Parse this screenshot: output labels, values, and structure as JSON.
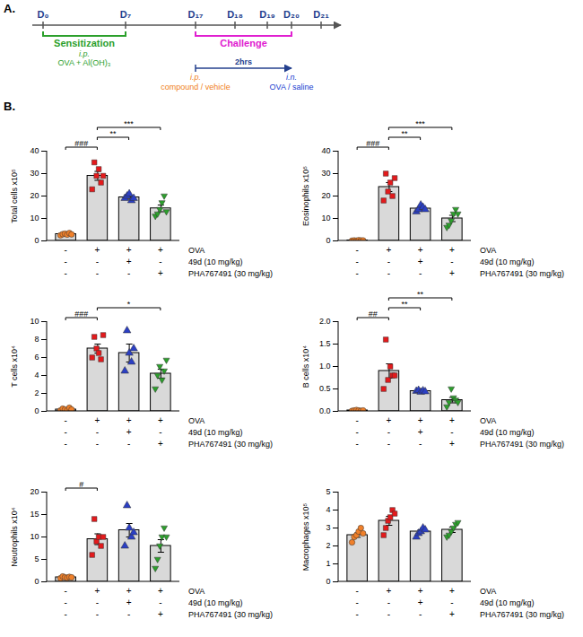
{
  "panel_labels": [
    "A.",
    "B."
  ],
  "timeline": {
    "days": [
      "D₀",
      "D₇",
      "D₁₇",
      "D₁₈",
      "D₁₉",
      "D₂₀",
      "D₂₁"
    ],
    "days_color": "#24408e",
    "phases": [
      {
        "label": "Sensitization",
        "from": "D₀",
        "to": "D₇",
        "color": "#2ca02c",
        "route": "i.p.",
        "treatment": "OVA + Al(OH)₃"
      },
      {
        "label": "Challenge",
        "from": "D₁₇",
        "to": "D₂₀",
        "color": "#e020d0"
      }
    ],
    "pretreatment": {
      "label": "2hrs",
      "from": "D₁₇",
      "to": "D₂₀",
      "color": "#24408e",
      "steps": [
        {
          "route": "i.p.",
          "text": "compound / vehicle",
          "color": "#f07f20"
        },
        {
          "route": "i.n.",
          "text": "OVA / saline",
          "color": "#2040d0"
        }
      ]
    }
  },
  "chart_data": [
    {
      "type": "bar",
      "ylabel": "Total cells x10⁵",
      "categories": [
        null,
        null,
        null,
        null
      ],
      "values": [
        3.0,
        29,
        19.4,
        14.5
      ],
      "errors": [
        0.3,
        2.0,
        0.8,
        1.5
      ],
      "points": [
        [
          2.5,
          3.0,
          3.2,
          2.8,
          3.5,
          2.9
        ],
        [
          23,
          35,
          29,
          32,
          26,
          29
        ],
        [
          19,
          20,
          21,
          18,
          19
        ],
        [
          11,
          12,
          14,
          17,
          20,
          13
        ]
      ],
      "colors": [
        "#f0802a",
        "#e41a1c",
        "#2b3fc4",
        "#2ca02c"
      ],
      "markers": [
        "circle",
        "square",
        "triangle",
        "triangle-down"
      ],
      "ylim": [
        0,
        40
      ],
      "yticks": [
        0,
        10,
        20,
        30,
        40
      ],
      "significance": [
        {
          "from": 0,
          "to": 1,
          "label": "###"
        },
        {
          "from": 1,
          "to": 2,
          "label": "**"
        },
        {
          "from": 1,
          "to": 3,
          "label": "***"
        }
      ],
      "conditions": [
        {
          "label": "OVA",
          "signs": [
            "-",
            "+",
            "+",
            "+"
          ]
        },
        {
          "label": "49d (10 mg/kg)",
          "signs": [
            "-",
            "-",
            "+",
            "-"
          ]
        },
        {
          "label": "PHA767491 (30 mg/kg)",
          "signs": [
            "-",
            "-",
            "-",
            "+"
          ]
        }
      ]
    },
    {
      "type": "bar",
      "ylabel": "Eosinophils x10⁵",
      "categories": [
        null,
        null,
        null,
        null
      ],
      "values": [
        0.2,
        24,
        14.4,
        10
      ],
      "errors": [
        0.05,
        2.0,
        0.6,
        1.4
      ],
      "points": [
        [
          0.1,
          0.2,
          0.1,
          0.3,
          0.2,
          0.2
        ],
        [
          18,
          30,
          22,
          26,
          20,
          28
        ],
        [
          13,
          14,
          16,
          15,
          14
        ],
        [
          6,
          7,
          9,
          12,
          14,
          12
        ]
      ],
      "colors": [
        "#f0802a",
        "#e41a1c",
        "#2b3fc4",
        "#2ca02c"
      ],
      "markers": [
        "circle",
        "square",
        "triangle",
        "triangle-down"
      ],
      "ylim": [
        0,
        40
      ],
      "yticks": [
        0,
        10,
        20,
        30,
        40
      ],
      "significance": [
        {
          "from": 0,
          "to": 1,
          "label": "###"
        },
        {
          "from": 1,
          "to": 2,
          "label": "**"
        },
        {
          "from": 1,
          "to": 3,
          "label": "***"
        }
      ],
      "conditions": [
        {
          "label": "OVA",
          "signs": [
            "-",
            "+",
            "+",
            "+"
          ]
        },
        {
          "label": "49d (10 mg/kg)",
          "signs": [
            "-",
            "-",
            "+",
            "-"
          ]
        },
        {
          "label": "PHA767491 (30 mg/kg)",
          "signs": [
            "-",
            "-",
            "-",
            "+"
          ]
        }
      ]
    },
    {
      "type": "bar",
      "ylabel": "T cells x10⁴",
      "categories": [
        null,
        null,
        null,
        null
      ],
      "values": [
        0.2,
        7.0,
        6.5,
        4.2
      ],
      "errors": [
        0.05,
        0.5,
        1.0,
        0.5
      ],
      "points": [
        [
          0.1,
          0.3,
          0.2,
          0.1,
          0.4,
          0.2
        ],
        [
          6,
          8.3,
          7,
          6.5,
          5.8,
          8.5
        ],
        [
          4.5,
          9,
          6.5,
          5.5,
          7
        ],
        [
          2.5,
          4.0,
          5,
          3.5,
          4.5,
          5.7
        ]
      ],
      "colors": [
        "#f0802a",
        "#e41a1c",
        "#2b3fc4",
        "#2ca02c"
      ],
      "markers": [
        "circle",
        "square",
        "triangle",
        "triangle-down"
      ],
      "ylim": [
        0,
        10
      ],
      "yticks": [
        0,
        2,
        4,
        6,
        8,
        10
      ],
      "significance": [
        {
          "from": 0,
          "to": 1,
          "label": "###"
        },
        {
          "from": 1,
          "to": 3,
          "label": "*"
        }
      ],
      "conditions": [
        {
          "label": "OVA",
          "signs": [
            "-",
            "+",
            "+",
            "+"
          ]
        },
        {
          "label": "49d (10 mg/kg)",
          "signs": [
            "-",
            "-",
            "+",
            "-"
          ]
        },
        {
          "label": "PHA767491 (30 mg/kg)",
          "signs": [
            "-",
            "-",
            "-",
            "+"
          ]
        }
      ]
    },
    {
      "type": "bar",
      "ylabel": "B cells x10⁴",
      "categories": [
        null,
        null,
        null,
        null
      ],
      "values": [
        0.02,
        0.9,
        0.45,
        0.25
      ],
      "errors": [
        0.005,
        0.16,
        0.01,
        0.06
      ],
      "points": [
        [
          0.01,
          0.02,
          0.03,
          0.02,
          0.01,
          0.02
        ],
        [
          0.5,
          1.6,
          0.7,
          1.0,
          0.8,
          0.8
        ],
        [
          0.45,
          0.47,
          0.43,
          0.46,
          0.44
        ],
        [
          0.1,
          0.2,
          0.5,
          0.3,
          0.25,
          0.2
        ]
      ],
      "colors": [
        "#f0802a",
        "#e41a1c",
        "#2b3fc4",
        "#2ca02c"
      ],
      "markers": [
        "circle",
        "square",
        "triangle",
        "triangle-down"
      ],
      "ylim": [
        0,
        2
      ],
      "yticks": [
        {
          "value": 0,
          "label": "0.0"
        },
        0.5,
        {
          "value": 1,
          "label": "1.0"
        },
        1.5,
        {
          "value": 2,
          "label": "2.0"
        }
      ],
      "significance": [
        {
          "from": 0,
          "to": 1,
          "label": "##"
        },
        {
          "from": 1,
          "to": 2,
          "label": "**"
        },
        {
          "from": 1,
          "to": 3,
          "label": "**"
        }
      ],
      "conditions": [
        {
          "label": "OVA",
          "signs": [
            "-",
            "+",
            "+",
            "+"
          ]
        },
        {
          "label": "49d (10 mg/kg)",
          "signs": [
            "-",
            "-",
            "+",
            "-"
          ]
        },
        {
          "label": "PHA767491 (30 mg/kg)",
          "signs": [
            "-",
            "-",
            "-",
            "+"
          ]
        }
      ]
    },
    {
      "type": "bar",
      "ylabel": "Neutrophils x10⁴",
      "categories": [
        null,
        null,
        null,
        null
      ],
      "values": [
        1.0,
        9.5,
        11.5,
        8.0
      ],
      "errors": [
        0.2,
        1.2,
        1.5,
        1.4
      ],
      "points": [
        [
          0.8,
          1.2,
          1.0,
          0.9,
          1.1,
          1.0
        ],
        [
          6,
          14,
          9,
          10,
          8,
          10
        ],
        [
          8,
          17,
          12,
          10,
          11
        ],
        [
          3,
          5,
          8,
          10,
          12,
          10
        ]
      ],
      "colors": [
        "#f0802a",
        "#e41a1c",
        "#2b3fc4",
        "#2ca02c"
      ],
      "markers": [
        "circle",
        "square",
        "triangle",
        "triangle-down"
      ],
      "ylim": [
        0,
        20
      ],
      "yticks": [
        0,
        5,
        10,
        15,
        20
      ],
      "significance": [
        {
          "from": 0,
          "to": 1,
          "label": "#"
        }
      ],
      "conditions": [
        {
          "label": "OVA",
          "signs": [
            "-",
            "+",
            "+",
            "+"
          ]
        },
        {
          "label": "49d (10 mg/kg)",
          "signs": [
            "-",
            "-",
            "+",
            "-"
          ]
        },
        {
          "label": "PHA767491 (30 mg/kg)",
          "signs": [
            "-",
            "-",
            "-",
            "+"
          ]
        }
      ]
    },
    {
      "type": "bar",
      "ylabel": "Macrophages x10⁵",
      "categories": [
        null,
        null,
        null,
        null
      ],
      "values": [
        2.6,
        3.4,
        2.8,
        2.9
      ],
      "errors": [
        0.12,
        0.25,
        0.1,
        0.15
      ],
      "points": [
        [
          2.2,
          2.5,
          2.6,
          2.8,
          3.0,
          2.7
        ],
        [
          2.6,
          3.0,
          3.4,
          3.6,
          4.0,
          3.8
        ],
        [
          2.5,
          2.7,
          2.8,
          3.0,
          2.9
        ],
        [
          2.5,
          2.6,
          2.8,
          3.0,
          3.2,
          3.3
        ]
      ],
      "colors": [
        "#f0802a",
        "#e41a1c",
        "#2b3fc4",
        "#2ca02c"
      ],
      "markers": [
        "circle",
        "square",
        "triangle",
        "triangle-down"
      ],
      "ylim": [
        0,
        5
      ],
      "yticks": [
        0,
        1,
        2,
        3,
        4,
        5
      ],
      "significance": [],
      "conditions": [
        {
          "label": "OVA",
          "signs": [
            "-",
            "+",
            "+",
            "+"
          ]
        },
        {
          "label": "49d (10 mg/kg)",
          "signs": [
            "-",
            "-",
            "+",
            "-"
          ]
        },
        {
          "label": "PHA767491 (30 mg/kg)",
          "signs": [
            "-",
            "-",
            "-",
            "+"
          ]
        }
      ]
    }
  ]
}
